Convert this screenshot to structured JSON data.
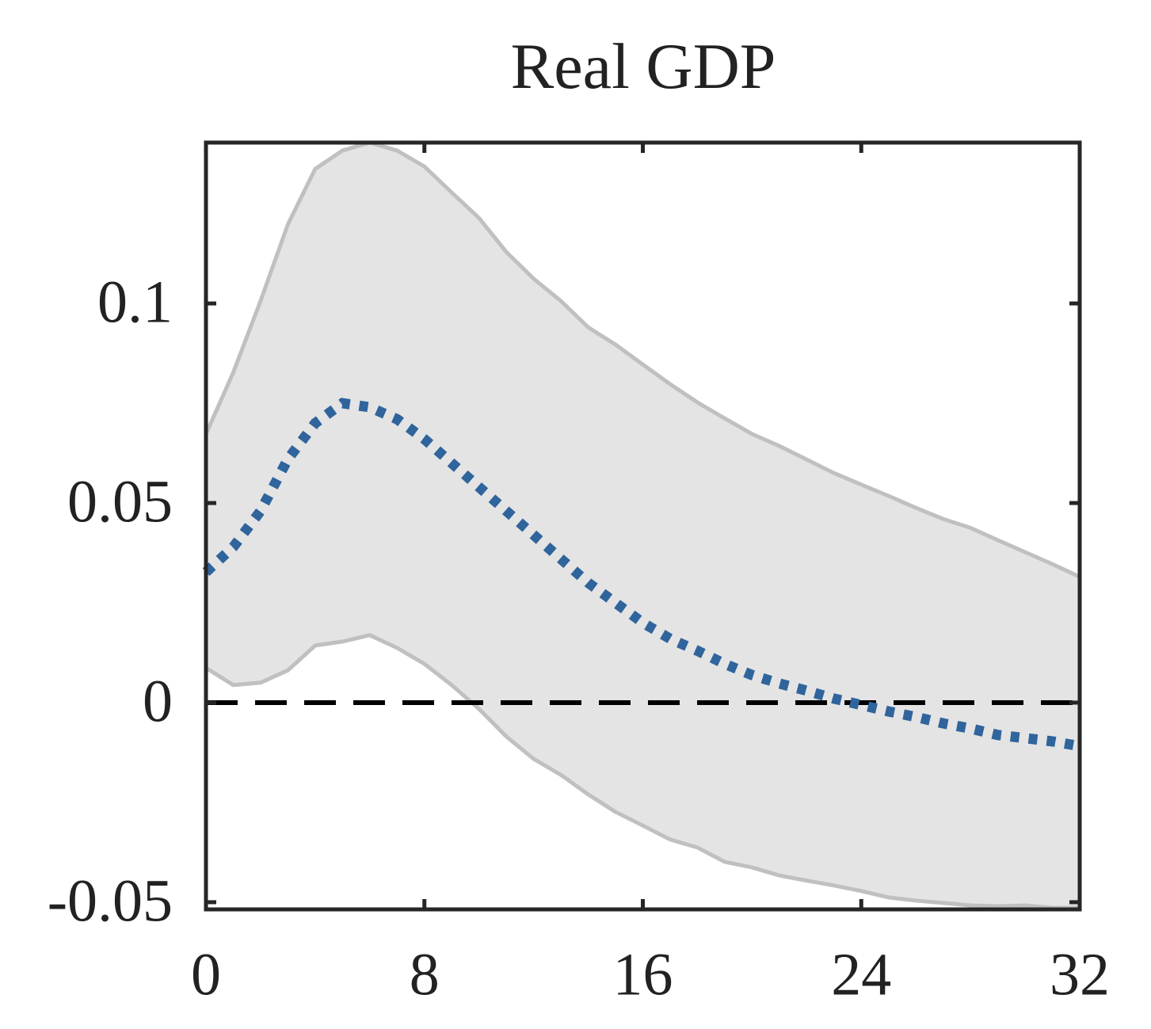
{
  "chart_data": {
    "type": "line",
    "title": "Real GDP",
    "x": [
      0,
      1,
      2,
      3,
      4,
      5,
      6,
      7,
      8,
      9,
      10,
      11,
      12,
      13,
      14,
      15,
      16,
      17,
      18,
      19,
      20,
      21,
      22,
      23,
      24,
      25,
      26,
      27,
      28,
      29,
      30,
      31,
      32
    ],
    "series": [
      {
        "color": "#30649c",
        "values": [
          0.0327,
          0.039,
          0.048,
          0.061,
          0.07,
          0.075,
          0.074,
          0.071,
          0.066,
          0.06,
          0.054,
          0.048,
          0.042,
          0.036,
          0.03,
          0.025,
          0.02,
          0.016,
          0.013,
          0.0097,
          0.0069,
          0.0048,
          0.003,
          0.001,
          -0.0006,
          -0.0022,
          -0.0036,
          -0.0052,
          -0.0065,
          -0.0081,
          -0.0089,
          -0.0097,
          -0.0109
        ]
      }
    ],
    "band": {
      "color": "#e4e4e4",
      "edge_color": "#c0c0c0",
      "upper": [
        0.0673,
        0.0827,
        0.1006,
        0.1198,
        0.1337,
        0.1383,
        0.1403,
        0.1383,
        0.1343,
        0.1278,
        0.1214,
        0.1129,
        0.1062,
        0.1006,
        0.094,
        0.0897,
        0.0847,
        0.0798,
        0.0752,
        0.0712,
        0.0673,
        0.0643,
        0.0609,
        0.0575,
        0.0546,
        0.0518,
        0.0488,
        0.046,
        0.0438,
        0.0407,
        0.0377,
        0.0347,
        0.0315
      ],
      "lower": [
        0.0087,
        0.0044,
        0.005,
        0.0081,
        0.0143,
        0.0153,
        0.0169,
        0.0137,
        0.0097,
        0.0044,
        -0.0016,
        -0.0085,
        -0.0141,
        -0.0181,
        -0.023,
        -0.0274,
        -0.0308,
        -0.0343,
        -0.0363,
        -0.0399,
        -0.0413,
        -0.0433,
        -0.0446,
        -0.0458,
        -0.0472,
        -0.0488,
        -0.0496,
        -0.0502,
        -0.0508,
        -0.051,
        -0.0508,
        -0.0514,
        -0.0514
      ]
    },
    "reference_line": {
      "value": 0,
      "color": "#000000"
    },
    "xlim": [
      0,
      32
    ],
    "xticks": [
      0,
      8,
      16,
      24,
      32
    ],
    "ylim": [
      -0.0518,
      0.1403
    ],
    "yticks": [
      -0.05,
      0,
      0.05,
      0.1
    ]
  }
}
